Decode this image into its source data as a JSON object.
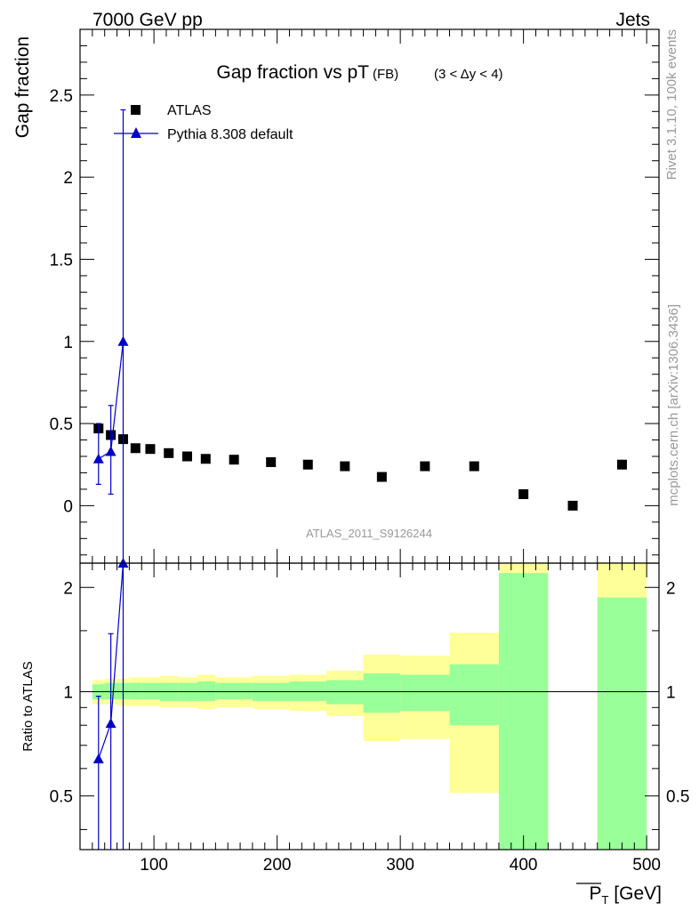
{
  "header": {
    "left": "7000 GeV pp",
    "right": "Jets"
  },
  "side_text": {
    "rivet": "Rivet 3.1.10,  100k events",
    "mcplots": "mcplots.cern.ch [arXiv:1306.3436]"
  },
  "watermark": "ATLAS_2011_S9126244",
  "colors": {
    "data": "#000000",
    "mc": "#0000cc",
    "band_inner": "#99ff99",
    "band_outer": "#ffff99"
  },
  "chart_data": [
    {
      "type": "scatter",
      "title": "Gap fraction vs pT",
      "title_sub": "(FB)",
      "title_range": "(3 < Δy < 4)",
      "ylabel": "Gap fraction",
      "xlim": [
        40,
        510
      ],
      "ylim": [
        -0.35,
        2.9
      ],
      "y_ticks": [
        0,
        0.5,
        1,
        1.5,
        2,
        2.5
      ],
      "y_tick_labels": [
        "0",
        "0.5",
        "1",
        "1.5",
        "2",
        "2.5"
      ],
      "legend": [
        "ATLAS",
        "Pythia 8.308 default"
      ],
      "series": [
        {
          "name": "ATLAS",
          "x": [
            55,
            65,
            75,
            85,
            97,
            112,
            127,
            142,
            165,
            195,
            225,
            255,
            285,
            320,
            360,
            400,
            440,
            480
          ],
          "y": [
            0.47,
            0.43,
            0.405,
            0.35,
            0.345,
            0.32,
            0.3,
            0.285,
            0.28,
            0.265,
            0.25,
            0.24,
            0.175,
            0.24,
            0.24,
            0.07,
            0.0,
            0.25
          ]
        },
        {
          "name": "Pythia 8.308 default",
          "x": [
            55,
            65,
            75
          ],
          "y": [
            0.285,
            0.33,
            1.0
          ],
          "err_lo": [
            0.13,
            0.07,
            -0.35
          ],
          "err_hi": [
            0.5,
            0.61,
            2.41
          ]
        }
      ]
    },
    {
      "type": "scatter",
      "ylabel": "Ratio to ATLAS",
      "xlabel": "P_T [GeV]",
      "xlim": [
        40,
        510
      ],
      "ylim": [
        0.35,
        2.35
      ],
      "y_ticks": [
        0.5,
        1,
        2
      ],
      "y_tick_labels": [
        "0.5",
        "1",
        "2"
      ],
      "x_ticks": [
        100,
        200,
        300,
        400,
        500
      ],
      "x_tick_labels": [
        "100",
        "200",
        "300",
        "400",
        "500"
      ],
      "bands": [
        {
          "x0": 50,
          "x1": 60,
          "in_lo": 0.95,
          "in_hi": 1.05,
          "out_lo": 0.92,
          "out_hi": 1.08
        },
        {
          "x0": 60,
          "x1": 70,
          "in_lo": 0.95,
          "in_hi": 1.06,
          "out_lo": 0.92,
          "out_hi": 1.09
        },
        {
          "x0": 70,
          "x1": 80,
          "in_lo": 0.95,
          "in_hi": 1.06,
          "out_lo": 0.91,
          "out_hi": 1.09
        },
        {
          "x0": 80,
          "x1": 90,
          "in_lo": 0.95,
          "in_hi": 1.06,
          "out_lo": 0.91,
          "out_hi": 1.1
        },
        {
          "x0": 90,
          "x1": 105,
          "in_lo": 0.95,
          "in_hi": 1.06,
          "out_lo": 0.91,
          "out_hi": 1.1
        },
        {
          "x0": 105,
          "x1": 120,
          "in_lo": 0.94,
          "in_hi": 1.06,
          "out_lo": 0.9,
          "out_hi": 1.11
        },
        {
          "x0": 120,
          "x1": 135,
          "in_lo": 0.94,
          "in_hi": 1.06,
          "out_lo": 0.9,
          "out_hi": 1.1
        },
        {
          "x0": 135,
          "x1": 150,
          "in_lo": 0.94,
          "in_hi": 1.07,
          "out_lo": 0.89,
          "out_hi": 1.12
        },
        {
          "x0": 150,
          "x1": 180,
          "in_lo": 0.95,
          "in_hi": 1.06,
          "out_lo": 0.9,
          "out_hi": 1.1
        },
        {
          "x0": 180,
          "x1": 210,
          "in_lo": 0.94,
          "in_hi": 1.06,
          "out_lo": 0.89,
          "out_hi": 1.11
        },
        {
          "x0": 210,
          "x1": 240,
          "in_lo": 0.94,
          "in_hi": 1.07,
          "out_lo": 0.88,
          "out_hi": 1.12
        },
        {
          "x0": 240,
          "x1": 270,
          "in_lo": 0.92,
          "in_hi": 1.08,
          "out_lo": 0.85,
          "out_hi": 1.15
        },
        {
          "x0": 270,
          "x1": 300,
          "in_lo": 0.87,
          "in_hi": 1.13,
          "out_lo": 0.72,
          "out_hi": 1.28
        },
        {
          "x0": 300,
          "x1": 340,
          "in_lo": 0.88,
          "in_hi": 1.12,
          "out_lo": 0.73,
          "out_hi": 1.27
        },
        {
          "x0": 340,
          "x1": 380,
          "in_lo": 0.8,
          "in_hi": 1.2,
          "out_lo": 0.51,
          "out_hi": 1.48
        },
        {
          "x0": 380,
          "x1": 420,
          "in_lo": 0.35,
          "in_hi": 2.2,
          "out_lo": 0.35,
          "out_hi": 2.35
        },
        {
          "x0": 460,
          "x1": 500,
          "in_lo": 0.35,
          "in_hi": 1.87,
          "out_lo": 0.35,
          "out_hi": 2.35
        }
      ],
      "series": [
        {
          "name": "Pythia 8.308 default / ATLAS",
          "x": [
            55,
            65,
            75
          ],
          "y": [
            0.64,
            0.81,
            2.35
          ],
          "err_lo": [
            0.35,
            0.35,
            0.35
          ],
          "err_hi": [
            0.97,
            1.47,
            2.35
          ]
        }
      ]
    }
  ]
}
